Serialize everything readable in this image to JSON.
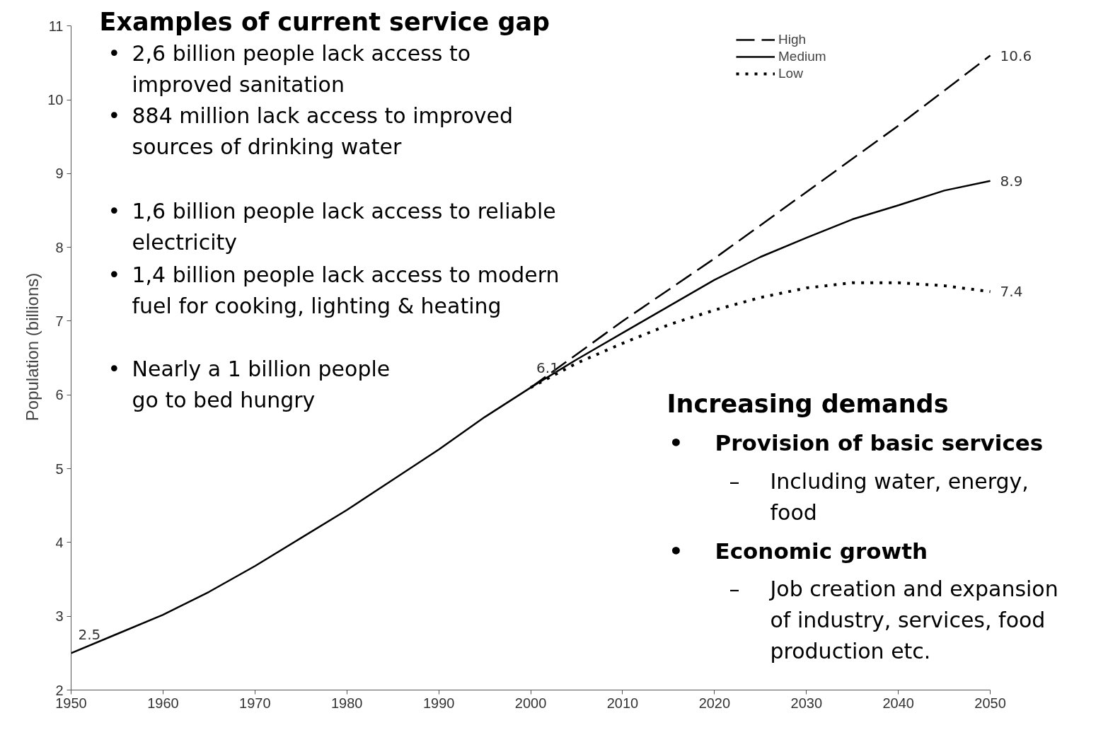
{
  "chart_data": {
    "type": "line",
    "ylabel": "Population (billions)",
    "x": [
      1950,
      1955,
      1960,
      1965,
      1970,
      1975,
      1980,
      1985,
      1990,
      1995,
      2000,
      2005,
      2010,
      2015,
      2020,
      2025,
      2030,
      2035,
      2040,
      2045,
      2050
    ],
    "series": [
      {
        "name": "High",
        "color": "#000000",
        "line_style": "dashed",
        "x": [
          2000,
          2005,
          2010,
          2020,
          2030,
          2040,
          2050
        ],
        "values": [
          6.1,
          6.55,
          7.0,
          7.85,
          8.75,
          9.65,
          10.6
        ]
      },
      {
        "name": "Medium",
        "color": "#000000",
        "line_style": "solid",
        "values": [
          2.5,
          2.76,
          3.02,
          3.33,
          3.68,
          4.06,
          4.44,
          4.85,
          5.26,
          5.7,
          6.1,
          6.48,
          6.84,
          7.2,
          7.56,
          7.87,
          8.13,
          8.38,
          8.57,
          8.77,
          8.9
        ]
      },
      {
        "name": "Low",
        "color": "#000000",
        "line_style": "dotted",
        "x": [
          2000,
          2005,
          2010,
          2015,
          2020,
          2025,
          2030,
          2035,
          2040,
          2045,
          2050
        ],
        "values": [
          6.1,
          6.43,
          6.7,
          6.95,
          7.15,
          7.32,
          7.45,
          7.52,
          7.52,
          7.48,
          7.4
        ]
      }
    ],
    "xlim": [
      1950,
      2050
    ],
    "ylim": [
      2,
      11
    ],
    "xticks": [
      1950,
      1960,
      1970,
      1980,
      1990,
      2000,
      2010,
      2020,
      2030,
      2040,
      2050
    ],
    "yticks": [
      2,
      3,
      4,
      5,
      6,
      7,
      8,
      9,
      10,
      11
    ],
    "grid": false,
    "legend": "top right",
    "annotations": [
      {
        "text": "2.5",
        "x": 1950,
        "y": 2.5
      },
      {
        "text": "6.1",
        "x": 2000,
        "y": 6.1
      },
      {
        "text": "10.6",
        "x": 2050,
        "y": 10.6
      },
      {
        "text": "8.9",
        "x": 2050,
        "y": 8.9
      },
      {
        "text": "7.4",
        "x": 2050,
        "y": 7.4
      },
      "Examples of current service gap",
      "• 2,6 billion people lack access to\nimproved sanitation",
      "• 884 million lack access to improved\nsources of drinking water",
      "• 1,6 billion people lack access to reliable\nelectricity",
      "• 1,4 billion people lack access to modern\nfuel for cooking, lighting & heating",
      "• Nearly a 1 billion people\ngo to bed hungry",
      "Increasing demands",
      "• Provision of basic services",
      "– Including water, energy,\nfood",
      "• Economic growth",
      "– Job creation and expansion\nof industry, services, food\nproduction etc."
    ]
  }
}
